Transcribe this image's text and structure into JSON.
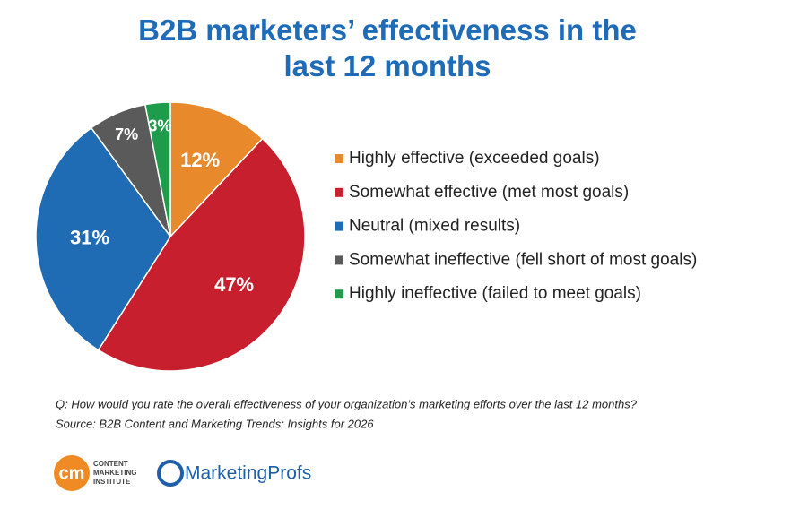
{
  "chart_data": {
    "type": "pie",
    "title": "B2B marketers’ effectiveness in the last 12 months",
    "categories": [
      "Highly effective (exceeded goals)",
      "Somewhat effective (met most goals)",
      "Neutral (mixed results)",
      "Somewhat ineffective (fell short of most goals)",
      "Highly ineffective (failed to meet goals)"
    ],
    "values": [
      12,
      47,
      31,
      7,
      3
    ],
    "value_labels": [
      "12%",
      "47%",
      "31%",
      "7%",
      "3%"
    ],
    "colors": [
      "#e8892b",
      "#c81f2e",
      "#1f6cb4",
      "#5a5a5a",
      "#1e9c4b"
    ],
    "note": "Q: How would you rate the overall effectiveness of your organization’s marketing efforts over the last 12 months?",
    "source": "Source: B2B Content and Marketing Trends: Insights for 2026",
    "logos": {
      "cmi_mark": "cm",
      "cmi_lines": [
        "CONTENT",
        "MARKETING",
        "INSTITUTE"
      ],
      "profs": "MarketingProfs"
    }
  }
}
